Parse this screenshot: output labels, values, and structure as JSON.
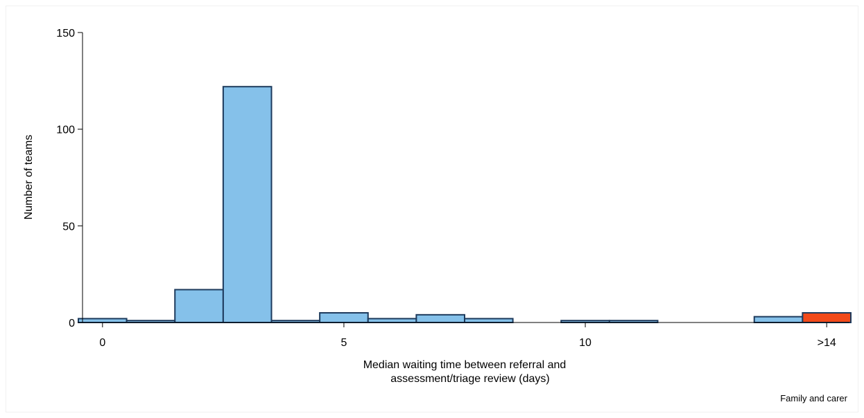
{
  "chart_data": {
    "type": "bar",
    "title": "",
    "xlabel_lines": [
      "Median waiting time between referral and",
      "assessment/triage review (days)"
    ],
    "ylabel": "Number of teams",
    "note": "Family and carer",
    "ylim": [
      0,
      150
    ],
    "xlim": [
      -0.5,
      15.5
    ],
    "yticks": [
      0,
      50,
      100,
      150
    ],
    "xticks": [
      {
        "value": 0,
        "label": "0"
      },
      {
        "value": 5,
        "label": "5"
      },
      {
        "value": 10,
        "label": "10"
      },
      {
        "value": 15,
        "label": ">14"
      }
    ],
    "bin_width": 1,
    "series": [
      {
        "color": "#85c1ea",
        "bins": [
          {
            "x": 0,
            "value": 2
          },
          {
            "x": 1,
            "value": 1
          },
          {
            "x": 2,
            "value": 17
          },
          {
            "x": 3,
            "value": 122
          },
          {
            "x": 4,
            "value": 1
          },
          {
            "x": 5,
            "value": 5
          },
          {
            "x": 6,
            "value": 2
          },
          {
            "x": 7,
            "value": 4
          },
          {
            "x": 8,
            "value": 2
          },
          {
            "x": 10,
            "value": 1
          },
          {
            "x": 11,
            "value": 1
          },
          {
            "x": 14,
            "value": 3
          }
        ]
      },
      {
        "color": "#f24a1a",
        "bins": [
          {
            "x": 15,
            "value": 5
          }
        ]
      }
    ],
    "bar_stroke": "#1d3a5c",
    "grid": false
  }
}
